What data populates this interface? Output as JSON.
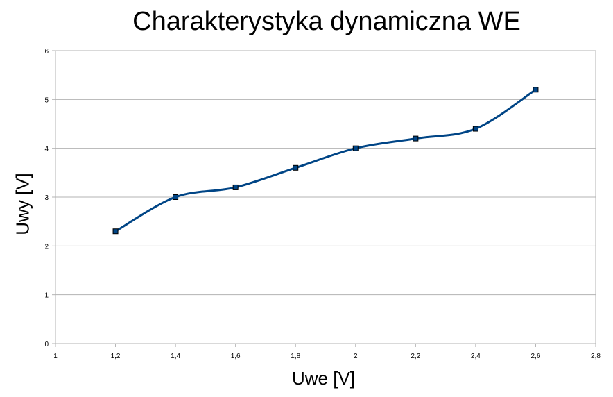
{
  "chart_data": {
    "type": "line",
    "title": "Charakterystyka dynamiczna WE",
    "xlabel": "Uwe [V]",
    "ylabel": "Uwy [V]",
    "xlim": [
      1,
      2.8
    ],
    "ylim": [
      0,
      6
    ],
    "x_ticks": [
      "1",
      "1,2",
      "1,4",
      "1,6",
      "1,8",
      "2",
      "2,2",
      "2,4",
      "2,6",
      "2,8"
    ],
    "y_ticks": [
      "0",
      "1",
      "2",
      "3",
      "4",
      "5",
      "6"
    ],
    "grid": true,
    "smooth": true,
    "line_color": "#004586",
    "series": [
      {
        "x": [
          1.2,
          1.4,
          1.6,
          1.8,
          2.0,
          2.2,
          2.4,
          2.6
        ],
        "y": [
          2.3,
          3.0,
          3.2,
          3.6,
          4.0,
          4.2,
          4.4,
          5.2
        ]
      }
    ]
  }
}
